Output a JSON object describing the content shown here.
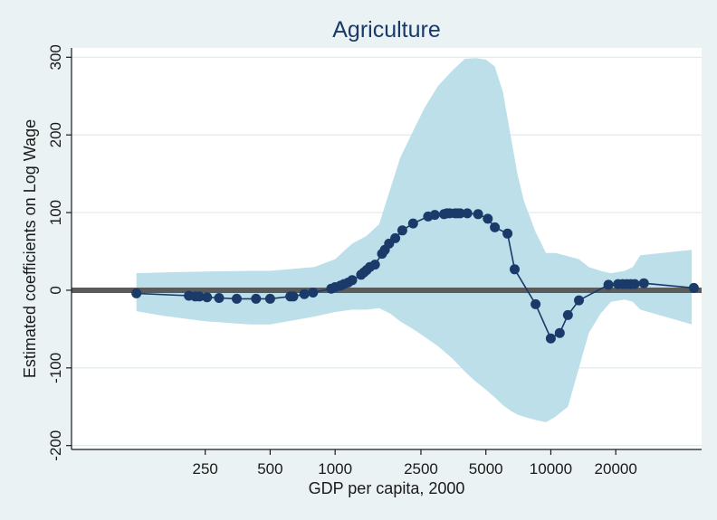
{
  "chart_data": {
    "type": "line",
    "title": "Agriculture",
    "xlabel": "GDP per capita, 2000",
    "ylabel": "Estimated coefficients on Log Wage",
    "x_scale": "log",
    "xlim": [
      60,
      50000
    ],
    "ylim": [
      -205,
      312
    ],
    "x_ticks": [
      250,
      500,
      1000,
      2500,
      5000,
      10000,
      20000
    ],
    "x_tick_labels": [
      "250",
      "500",
      "1000",
      "2500",
      "5000",
      "10000",
      "20000"
    ],
    "y_ticks": [
      -200,
      -100,
      0,
      100,
      200,
      300
    ],
    "y_tick_labels": [
      "-200",
      "-100",
      "0",
      "100",
      "200",
      "300"
    ],
    "grid": "horizontal",
    "colors": {
      "background": "#eaf2f3",
      "plot_area": "#ffffff",
      "gridline": "#dde9ec",
      "band": "#bcdfe9",
      "line": "#1a3a6a",
      "marker": "#1a3a6a",
      "zero_line": "#5b5b5b",
      "title": "#1a3a6a"
    },
    "zero_line": {
      "y": 0,
      "x_start": 60,
      "x_end": 50000
    },
    "confidence_band": {
      "x": [
        120,
        160,
        250,
        400,
        500,
        800,
        1000,
        1200,
        1400,
        1600,
        1800,
        2000,
        2300,
        2600,
        3000,
        3500,
        4000,
        4500,
        5000,
        5500,
        6000,
        6500,
        7000,
        7500,
        8500,
        9500,
        10500,
        12000,
        13500,
        15000,
        17000,
        19000,
        22000,
        24000,
        26000,
        45000
      ],
      "lower": [
        -27,
        -33,
        -40,
        -44,
        -44,
        -34,
        -28,
        -25,
        -25,
        -23,
        -30,
        -40,
        -50,
        -60,
        -72,
        -88,
        -105,
        -118,
        -128,
        -138,
        -148,
        -155,
        -160,
        -163,
        -167,
        -170,
        -163,
        -150,
        -100,
        -55,
        -30,
        -15,
        -12,
        -15,
        -25,
        -44
      ],
      "upper": [
        22,
        23,
        24,
        25,
        25,
        30,
        40,
        60,
        70,
        85,
        130,
        170,
        205,
        235,
        263,
        283,
        298,
        299,
        297,
        288,
        255,
        200,
        150,
        115,
        75,
        48,
        48,
        44,
        40,
        30,
        25,
        22,
        25,
        30,
        45,
        52
      ]
    },
    "series": [
      {
        "x": [
          120,
          210,
          225,
          235,
          255,
          290,
          350,
          430,
          500,
          620,
          640,
          720,
          790,
          960,
          1000,
          1060,
          1100,
          1150,
          1200,
          1320,
          1360,
          1400,
          1450,
          1530,
          1650,
          1700,
          1780,
          1900,
          2050,
          2300,
          2700,
          2900,
          3200,
          3300,
          3400,
          3600,
          3700,
          3800,
          4100,
          4600,
          5100,
          5500,
          6300,
          6800,
          8500,
          10000,
          11000,
          12000,
          13500,
          18500,
          20500,
          21500,
          22500,
          23500,
          24500,
          27000,
          46000
        ],
        "y": [
          -4,
          -7,
          -8,
          -8,
          -9,
          -10,
          -11,
          -11,
          -11,
          -8,
          -8,
          -5,
          -3,
          2,
          4,
          6,
          8,
          10,
          13,
          20,
          23,
          26,
          30,
          33,
          47,
          52,
          60,
          67,
          77,
          86,
          95,
          97,
          98,
          99,
          99,
          99,
          99,
          99,
          99,
          98,
          92,
          81,
          73,
          27,
          -18,
          -62,
          -55,
          -32,
          -13,
          7,
          8,
          8,
          8,
          8,
          8,
          9,
          3
        ]
      }
    ]
  }
}
